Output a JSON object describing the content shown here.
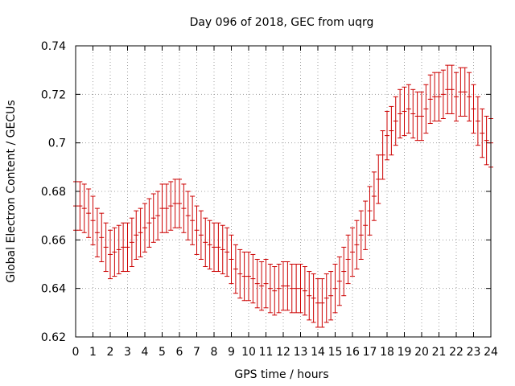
{
  "chart_data": {
    "type": "errorbar",
    "title": "Day 096 of 2018, GEC from uqrg",
    "xlabel": "GPS time / hours",
    "ylabel": "Global Electron Content / GECUs",
    "xlim": [
      0,
      24
    ],
    "ylim": [
      0.62,
      0.74
    ],
    "xticks": [
      "0",
      "1",
      "2",
      "3",
      "4",
      "5",
      "6",
      "7",
      "8",
      "9",
      "10",
      "11",
      "12",
      "13",
      "14",
      "15",
      "16",
      "17",
      "18",
      "19",
      "20",
      "21",
      "22",
      "23",
      "24"
    ],
    "yticks": [
      "0.62",
      "0.64",
      "0.66",
      "0.68",
      "0.7",
      "0.72",
      "0.74"
    ],
    "grid": true,
    "series_color": "#cc0000",
    "error": 0.01,
    "x": [
      0,
      0.25,
      0.5,
      0.75,
      1,
      1.25,
      1.5,
      1.75,
      2,
      2.25,
      2.5,
      2.75,
      3,
      3.25,
      3.5,
      3.75,
      4,
      4.25,
      4.5,
      4.75,
      5,
      5.25,
      5.5,
      5.75,
      6,
      6.25,
      6.5,
      6.75,
      7,
      7.25,
      7.5,
      7.75,
      8,
      8.25,
      8.5,
      8.75,
      9,
      9.25,
      9.5,
      9.75,
      10,
      10.25,
      10.5,
      10.75,
      11,
      11.25,
      11.5,
      11.75,
      12,
      12.25,
      12.5,
      12.75,
      13,
      13.25,
      13.5,
      13.75,
      14,
      14.25,
      14.5,
      14.75,
      15,
      15.25,
      15.5,
      15.75,
      16,
      16.25,
      16.5,
      16.75,
      17,
      17.25,
      17.5,
      17.75,
      18,
      18.25,
      18.5,
      18.75,
      19,
      19.25,
      19.5,
      19.75,
      20,
      20.25,
      20.5,
      20.75,
      21,
      21.25,
      21.5,
      21.75,
      22,
      22.25,
      22.5,
      22.75,
      23,
      23.25,
      23.5,
      23.75,
      24
    ],
    "y": [
      0.674,
      0.674,
      0.673,
      0.671,
      0.668,
      0.663,
      0.661,
      0.657,
      0.654,
      0.655,
      0.656,
      0.657,
      0.657,
      0.659,
      0.662,
      0.663,
      0.665,
      0.667,
      0.669,
      0.67,
      0.673,
      0.673,
      0.674,
      0.675,
      0.675,
      0.673,
      0.67,
      0.668,
      0.664,
      0.662,
      0.659,
      0.658,
      0.657,
      0.657,
      0.656,
      0.655,
      0.652,
      0.648,
      0.646,
      0.645,
      0.645,
      0.644,
      0.642,
      0.641,
      0.642,
      0.64,
      0.639,
      0.64,
      0.641,
      0.641,
      0.64,
      0.64,
      0.64,
      0.639,
      0.637,
      0.636,
      0.634,
      0.634,
      0.636,
      0.637,
      0.64,
      0.643,
      0.647,
      0.652,
      0.655,
      0.658,
      0.662,
      0.666,
      0.672,
      0.678,
      0.685,
      0.695,
      0.703,
      0.705,
      0.709,
      0.712,
      0.713,
      0.714,
      0.712,
      0.711,
      0.711,
      0.714,
      0.718,
      0.719,
      0.719,
      0.72,
      0.722,
      0.722,
      0.719,
      0.721,
      0.721,
      0.719,
      0.714,
      0.709,
      0.704,
      0.701,
      0.7
    ]
  }
}
